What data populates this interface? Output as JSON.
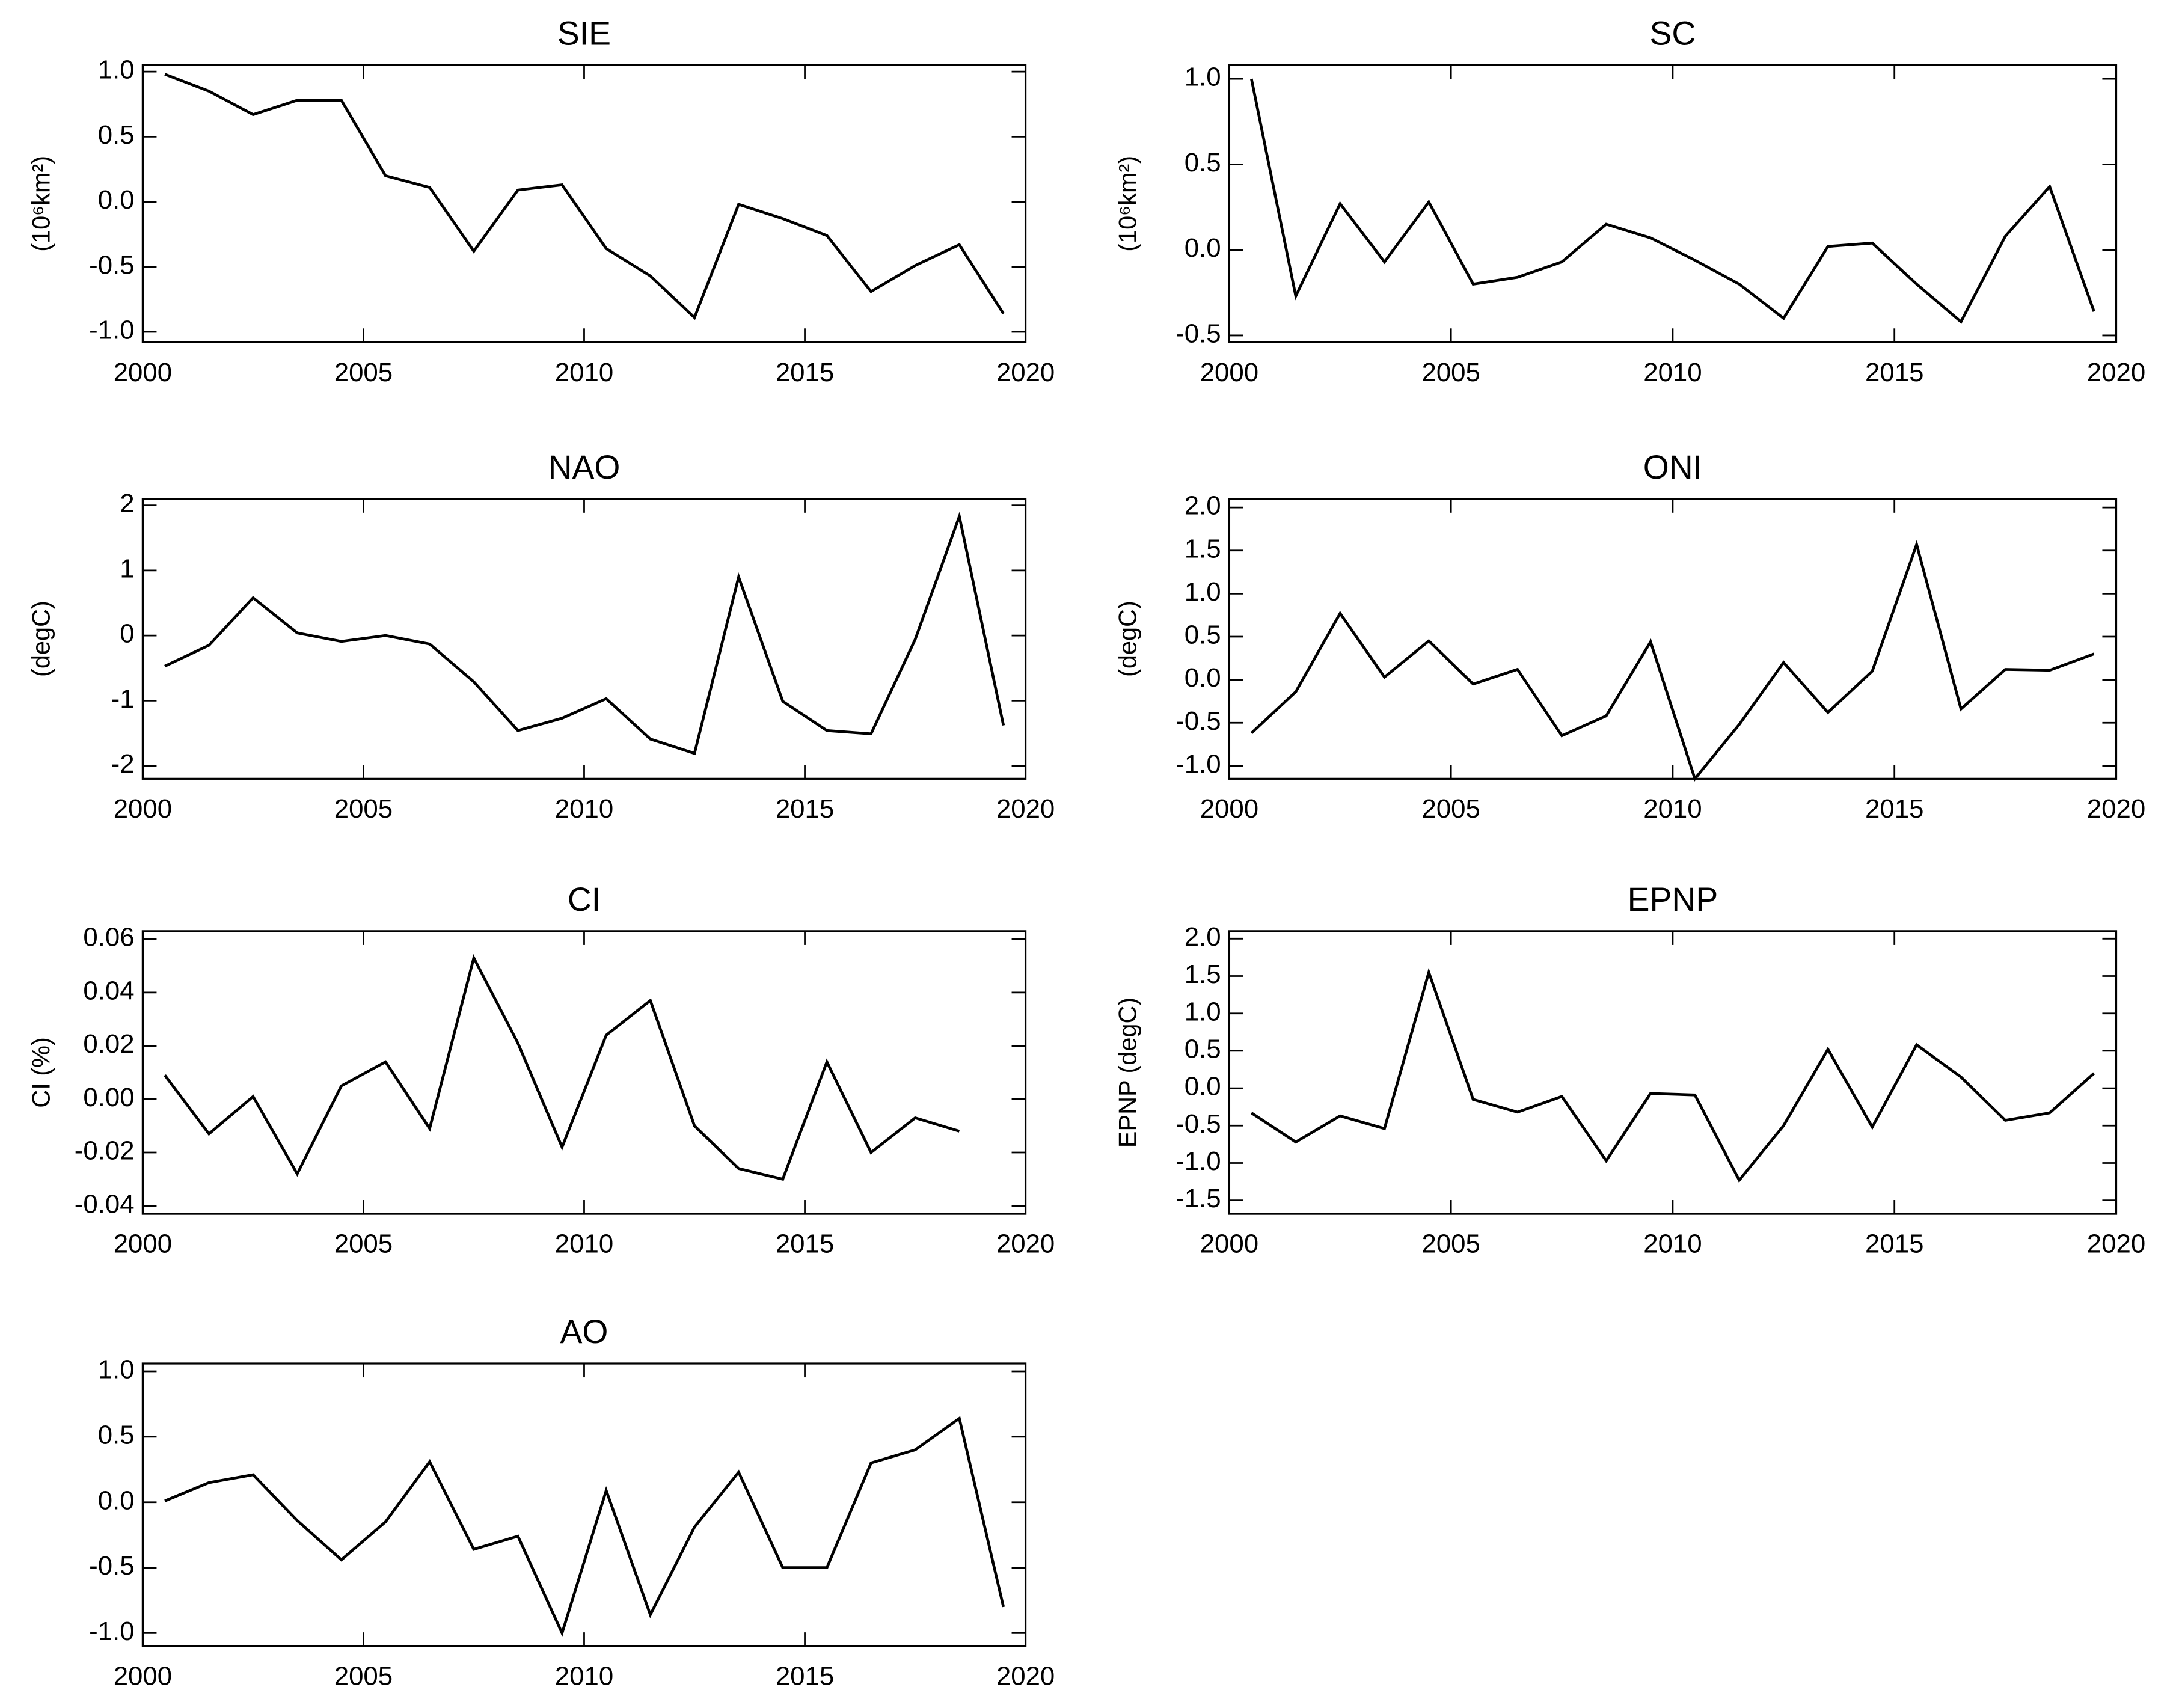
{
  "chart_data": [
    {
      "type": "line",
      "title": "SIE",
      "ylabel": "(10⁶km²)",
      "x": [
        2000.5,
        2001.5,
        2002.5,
        2003.5,
        2004.5,
        2005.5,
        2006.5,
        2007.5,
        2008.5,
        2009.5,
        2010.5,
        2011.5,
        2012.5,
        2013.5,
        2014.5,
        2015.5,
        2016.5,
        2017.5,
        2018.5,
        2019.5
      ],
      "values": [
        0.98,
        0.85,
        0.67,
        0.78,
        0.78,
        0.2,
        0.11,
        -0.38,
        0.09,
        0.13,
        -0.36,
        -0.57,
        -0.89,
        -0.02,
        -0.13,
        -0.26,
        -0.69,
        -0.49,
        -0.33,
        -0.86
      ],
      "xlim": [
        2000,
        2020
      ],
      "xticks": [
        2000,
        2005,
        2010,
        2015,
        2020
      ],
      "ylim": [
        -1.08,
        1.05
      ],
      "yticks": [
        {
          "value": -1,
          "label": "-1.0"
        },
        {
          "value": -0.5,
          "label": "-0.5"
        },
        {
          "value": 0,
          "label": "0.0"
        },
        {
          "value": 0.5,
          "label": "0.5"
        },
        {
          "value": 1,
          "label": "1.0"
        }
      ],
      "color": "#000000"
    },
    {
      "type": "line",
      "title": "SC",
      "ylabel": "(10⁶km²)",
      "x": [
        2000.5,
        2001.5,
        2002.5,
        2003.5,
        2004.5,
        2005.5,
        2006.5,
        2007.5,
        2008.5,
        2009.5,
        2010.5,
        2011.5,
        2012.5,
        2013.5,
        2014.5,
        2015.5,
        2016.5,
        2017.5,
        2018.5,
        2019.5
      ],
      "values": [
        1.0,
        -0.27,
        0.27,
        -0.07,
        0.28,
        -0.2,
        -0.16,
        -0.07,
        0.15,
        0.07,
        -0.06,
        -0.2,
        -0.4,
        0.02,
        0.04,
        -0.2,
        -0.42,
        0.08,
        0.37,
        -0.36
      ],
      "xlim": [
        2000,
        2020
      ],
      "xticks": [
        2000,
        2005,
        2010,
        2015,
        2020
      ],
      "ylim": [
        -0.54,
        1.08
      ],
      "yticks": [
        {
          "value": -0.5,
          "label": "-0.5"
        },
        {
          "value": 0,
          "label": "0.0"
        },
        {
          "value": 0.5,
          "label": "0.5"
        },
        {
          "value": 1,
          "label": "1.0"
        }
      ],
      "color": "#000000"
    },
    {
      "type": "line",
      "title": "NAO",
      "ylabel": "(degC)",
      "x": [
        2000.5,
        2001.5,
        2002.5,
        2003.5,
        2004.5,
        2005.5,
        2006.5,
        2007.5,
        2008.5,
        2009.5,
        2010.5,
        2011.5,
        2012.5,
        2013.5,
        2014.5,
        2015.5,
        2016.5,
        2017.5,
        2018.5,
        2019.5
      ],
      "values": [
        -0.47,
        -0.15,
        0.58,
        0.04,
        -0.09,
        0.0,
        -0.13,
        -0.71,
        -1.46,
        -1.27,
        -0.97,
        -1.59,
        -1.81,
        0.9,
        -1.01,
        -1.46,
        -1.51,
        -0.06,
        1.83,
        -1.38
      ],
      "xlim": [
        2000,
        2020
      ],
      "xticks": [
        2000,
        2005,
        2010,
        2015,
        2020
      ],
      "ylim": [
        -2.2,
        2.1
      ],
      "yticks": [
        -2,
        -1,
        0,
        1,
        2
      ],
      "color": "#000000"
    },
    {
      "type": "line",
      "title": "ONI",
      "ylabel": "(degC)",
      "x": [
        2000.5,
        2001.5,
        2002.5,
        2003.5,
        2004.5,
        2005.5,
        2006.5,
        2007.5,
        2008.5,
        2009.5,
        2010.5,
        2011.5,
        2012.5,
        2013.5,
        2014.5,
        2015.5,
        2016.5,
        2017.5,
        2018.5,
        2019.5
      ],
      "values": [
        -0.62,
        -0.14,
        0.77,
        0.03,
        0.45,
        -0.05,
        0.12,
        -0.65,
        -0.42,
        0.44,
        -1.15,
        -0.52,
        0.2,
        -0.38,
        0.1,
        1.57,
        -0.34,
        0.12,
        0.11,
        0.3
      ],
      "xlim": [
        2000,
        2020
      ],
      "xticks": [
        2000,
        2005,
        2010,
        2015,
        2020
      ],
      "ylim": [
        -1.15,
        2.1
      ],
      "yticks": [
        {
          "value": -1,
          "label": "-1.0"
        },
        {
          "value": -0.5,
          "label": "-0.5"
        },
        {
          "value": 0,
          "label": "0.0"
        },
        {
          "value": 0.5,
          "label": "0.5"
        },
        {
          "value": 1,
          "label": "1.0"
        },
        {
          "value": 1.5,
          "label": "1.5"
        },
        {
          "value": 2,
          "label": "2.0"
        }
      ],
      "color": "#000000"
    },
    {
      "type": "line",
      "title": "CI",
      "ylabel": "CI (%)",
      "x": [
        2000.5,
        2001.5,
        2002.5,
        2003.5,
        2004.5,
        2005.5,
        2006.5,
        2007.5,
        2008.5,
        2009.5,
        2010.5,
        2011.5,
        2012.5,
        2013.5,
        2014.5,
        2015.5,
        2016.5,
        2017.5,
        2018.5
      ],
      "values": [
        0.009,
        -0.013,
        0.001,
        -0.028,
        0.005,
        0.014,
        -0.011,
        0.053,
        0.021,
        -0.018,
        0.024,
        0.037,
        -0.01,
        -0.026,
        -0.03,
        0.014,
        -0.02,
        -0.007,
        -0.012
      ],
      "xlim": [
        2000,
        2020
      ],
      "xticks": [
        2000,
        2005,
        2010,
        2015,
        2020
      ],
      "ylim": [
        -0.043,
        0.063
      ],
      "yticks": [
        {
          "value": -0.04,
          "label": "-0.04"
        },
        {
          "value": -0.02,
          "label": "-0.02"
        },
        {
          "value": 0,
          "label": "0.00"
        },
        {
          "value": 0.02,
          "label": "0.02"
        },
        {
          "value": 0.04,
          "label": "0.04"
        },
        {
          "value": 0.06,
          "label": "0.06"
        }
      ],
      "color": "#000000"
    },
    {
      "type": "line",
      "title": "EPNP",
      "ylabel": "EPNP (degC)",
      "x": [
        2000.5,
        2001.5,
        2002.5,
        2003.5,
        2004.5,
        2005.5,
        2006.5,
        2007.5,
        2008.5,
        2009.5,
        2010.5,
        2011.5,
        2012.5,
        2013.5,
        2014.5,
        2015.5,
        2016.5,
        2017.5,
        2018.5,
        2019.5
      ],
      "values": [
        -0.33,
        -0.72,
        -0.37,
        -0.54,
        1.55,
        -0.15,
        -0.32,
        -0.11,
        -0.97,
        -0.07,
        -0.09,
        -1.23,
        -0.5,
        0.52,
        -0.52,
        0.58,
        0.15,
        -0.43,
        -0.33,
        0.2
      ],
      "xlim": [
        2000,
        2020
      ],
      "xticks": [
        2000,
        2005,
        2010,
        2015,
        2020
      ],
      "ylim": [
        -1.68,
        2.1
      ],
      "yticks": [
        {
          "value": -1.5,
          "label": "-1.5"
        },
        {
          "value": -1,
          "label": "-1.0"
        },
        {
          "value": -0.5,
          "label": "-0.5"
        },
        {
          "value": 0,
          "label": "0.0"
        },
        {
          "value": 0.5,
          "label": "0.5"
        },
        {
          "value": 1,
          "label": "1.0"
        },
        {
          "value": 1.5,
          "label": "1.5"
        },
        {
          "value": 2,
          "label": "2.0"
        }
      ],
      "color": "#000000"
    },
    {
      "type": "line",
      "title": "AO",
      "x": [
        2000.5,
        2001.5,
        2002.5,
        2003.5,
        2004.5,
        2005.5,
        2006.5,
        2007.5,
        2008.5,
        2009.5,
        2010.5,
        2011.5,
        2012.5,
        2013.5,
        2014.5,
        2015.5,
        2016.5,
        2017.5,
        2018.5,
        2019.5
      ],
      "values": [
        0.01,
        0.15,
        0.21,
        -0.14,
        -0.44,
        -0.15,
        0.31,
        -0.36,
        -0.26,
        -1.0,
        0.09,
        -0.86,
        -0.19,
        0.23,
        -0.5,
        -0.5,
        0.3,
        0.4,
        0.64,
        -0.8
      ],
      "xlim": [
        2000,
        2020
      ],
      "xticks": [
        2000,
        2005,
        2010,
        2015,
        2020
      ],
      "ylim": [
        -1.1,
        1.06
      ],
      "yticks": [
        {
          "value": -1,
          "label": "-1.0"
        },
        {
          "value": -0.5,
          "label": "-0.5"
        },
        {
          "value": 0,
          "label": "0.0"
        },
        {
          "value": 0.5,
          "label": "0.5"
        },
        {
          "value": 1,
          "label": "1.0"
        }
      ],
      "color": "#000000"
    }
  ]
}
